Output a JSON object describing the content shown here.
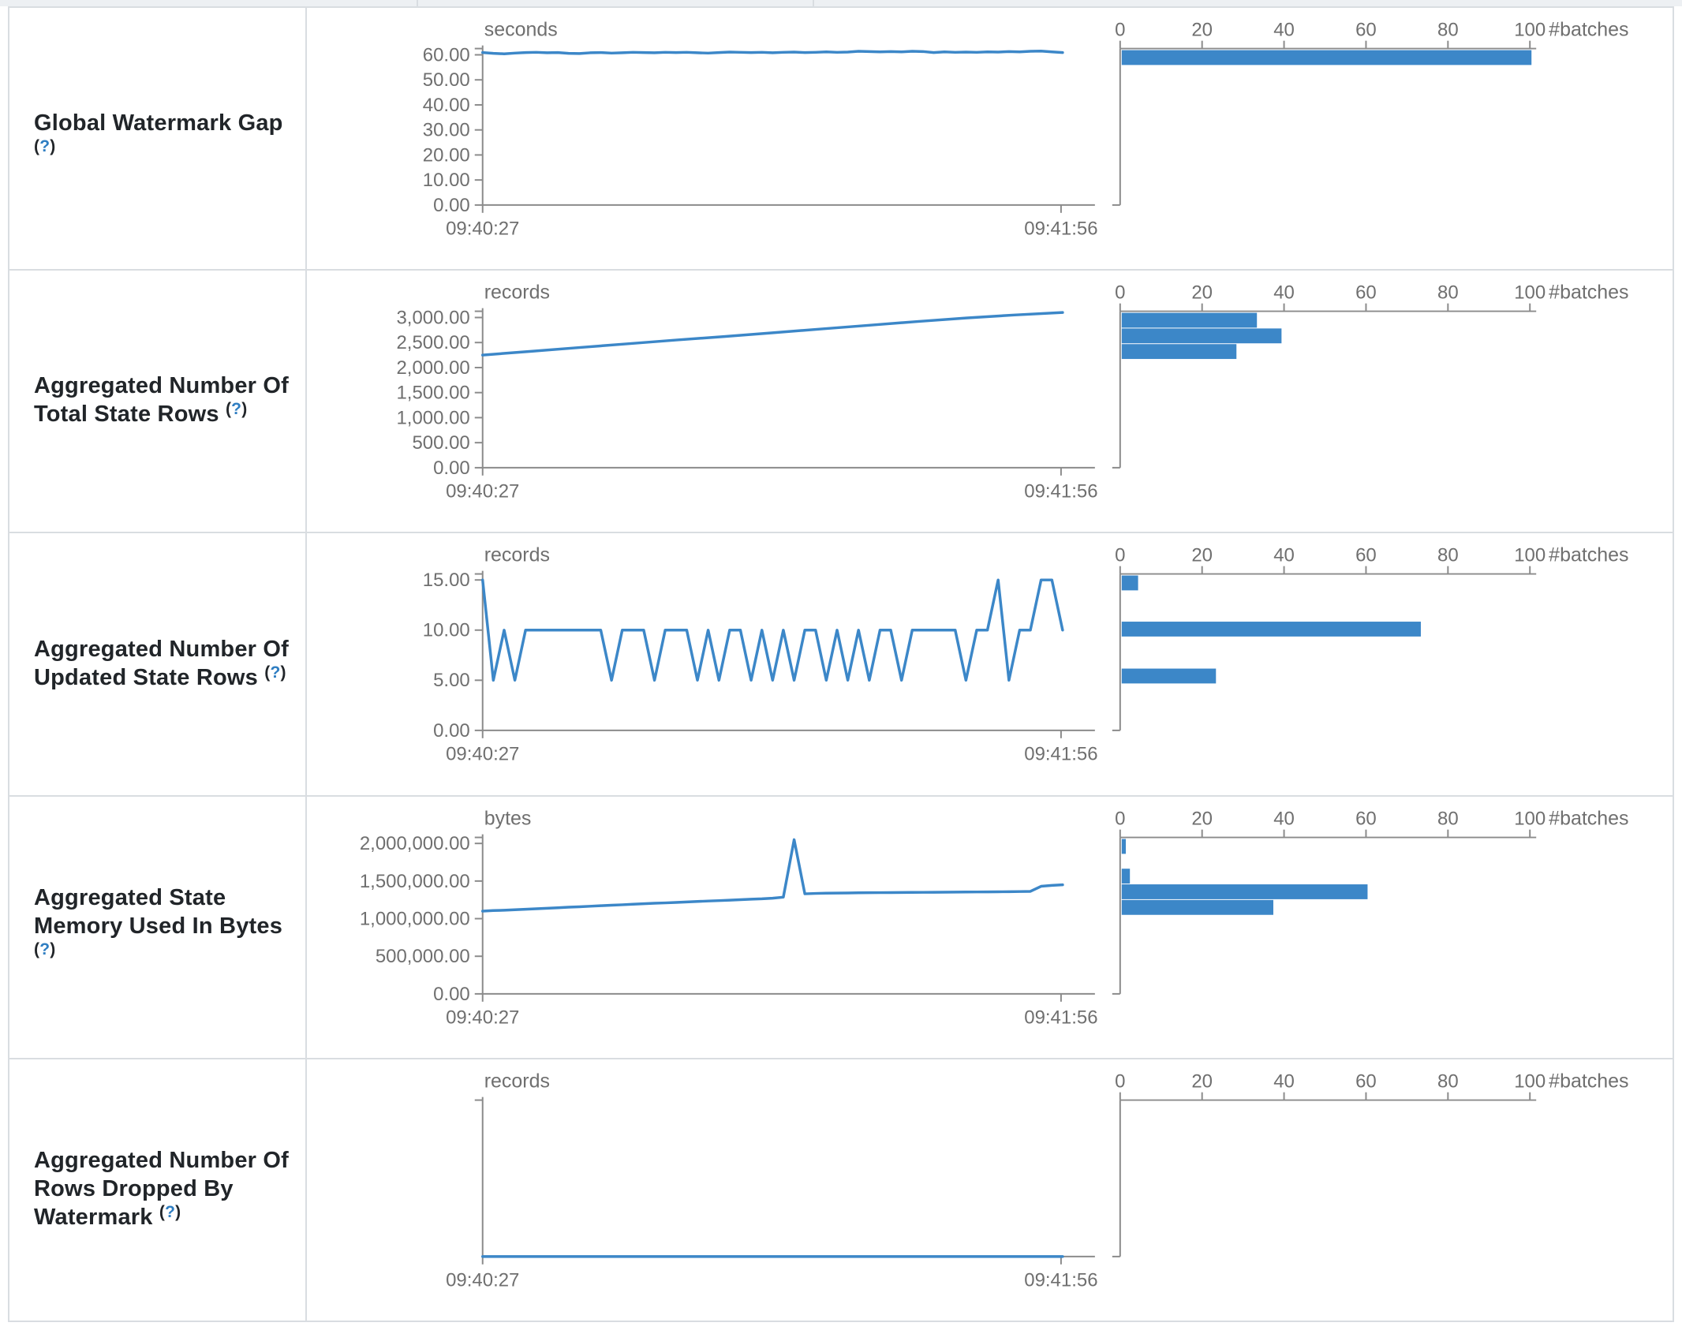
{
  "palette": {
    "line_blue": "#3c87c8",
    "bar_blue": "#3c87c8",
    "axis_gray": "#8b8b8b",
    "tick_text_gray": "#6f6f6f",
    "label_text": "#212529",
    "help_link_blue": "#2f7ec2",
    "table_border": "#d9dde1"
  },
  "x_axis": {
    "start_label": "09:40:27",
    "end_label": "09:41:56"
  },
  "histogram_axis": {
    "tick_labels": [
      "0",
      "20",
      "40",
      "60",
      "80",
      "100"
    ],
    "unit_label": "#batches"
  },
  "help_marker": {
    "open": "(",
    "mark": "?",
    "close": ")"
  },
  "rows": [
    {
      "id": "global-watermark-gap",
      "label_lines": [
        "Global Watermark Gap",
        "{q}"
      ],
      "unit": "seconds",
      "y_ticks": [
        {
          "v": 60,
          "label": "60.00"
        },
        {
          "v": 50,
          "label": "50.00"
        },
        {
          "v": 40,
          "label": "40.00"
        },
        {
          "v": 30,
          "label": "30.00"
        },
        {
          "v": 20,
          "label": "20.00"
        },
        {
          "v": 10,
          "label": "10.00"
        },
        {
          "v": 0,
          "label": "0.00"
        }
      ],
      "y_max": 62.5,
      "line_values": [
        60.9,
        60.6,
        60.4,
        60.7,
        60.9,
        61.0,
        60.8,
        60.9,
        60.6,
        60.5,
        60.8,
        60.9,
        60.7,
        60.8,
        61.0,
        60.9,
        60.8,
        61.0,
        60.9,
        61.0,
        60.8,
        60.7,
        60.9,
        61.1,
        61.0,
        60.9,
        61.0,
        60.8,
        61.0,
        61.1,
        60.9,
        61.0,
        61.2,
        61.0,
        61.1,
        61.4,
        61.3,
        61.2,
        61.3,
        61.2,
        61.4,
        61.3,
        60.9,
        61.2,
        61.0,
        61.1,
        61.0,
        61.2,
        61.1,
        61.3,
        61.2,
        61.4,
        61.5,
        61.2,
        60.9
      ],
      "histogram_bars": [
        {
          "value": 100,
          "y": 54
        }
      ]
    },
    {
      "id": "total-state-rows",
      "label_lines": [
        "Aggregated Number Of",
        "Total State Rows {q}"
      ],
      "unit": "records",
      "y_ticks": [
        {
          "v": 3000,
          "label": "3,000.00"
        },
        {
          "v": 2500,
          "label": "2,500.00"
        },
        {
          "v": 2000,
          "label": "2,000.00"
        },
        {
          "v": 1500,
          "label": "1,500.00"
        },
        {
          "v": 1000,
          "label": "1,000.00"
        },
        {
          "v": 500,
          "label": "500.00"
        },
        {
          "v": 0,
          "label": "0.00"
        }
      ],
      "y_max": 3125,
      "line_values": [
        2250,
        2325,
        2400,
        2475,
        2550,
        2620,
        2695,
        2770,
        2845,
        2920,
        2990,
        3050,
        3100
      ],
      "histogram_bars": [
        {
          "value": 33,
          "y": 54
        },
        {
          "value": 39,
          "y": 74
        },
        {
          "value": 28,
          "y": 94
        }
      ]
    },
    {
      "id": "updated-state-rows",
      "label_lines": [
        "Aggregated Number Of",
        "Updated State Rows {q}"
      ],
      "unit": "records",
      "y_ticks": [
        {
          "v": 15,
          "label": "15.00"
        },
        {
          "v": 10,
          "label": "10.00"
        },
        {
          "v": 5,
          "label": "5.00"
        },
        {
          "v": 0,
          "label": "0.00"
        }
      ],
      "y_max": 15.6,
      "line_values": [
        15,
        5,
        10,
        5,
        10,
        10,
        10,
        10,
        10,
        10,
        10,
        10,
        5,
        10,
        10,
        10,
        5,
        10,
        10,
        10,
        5,
        10,
        5,
        10,
        10,
        5,
        10,
        5,
        10,
        5,
        10,
        10,
        5,
        10,
        5,
        10,
        5,
        10,
        10,
        5,
        10,
        10,
        10,
        10,
        10,
        5,
        10,
        10,
        15,
        5,
        10,
        10,
        15,
        15,
        10
      ],
      "histogram_bars": [
        {
          "value": 4,
          "y": 54
        },
        {
          "value": 73,
          "y": 113
        },
        {
          "value": 23,
          "y": 173
        }
      ]
    },
    {
      "id": "state-memory-used-bytes",
      "label_lines": [
        "Aggregated State",
        "Memory Used In Bytes",
        "{q}"
      ],
      "unit": "bytes",
      "y_ticks": [
        {
          "v": 2000000,
          "label": "2,000,000.00"
        },
        {
          "v": 1500000,
          "label": "1,500,000.00"
        },
        {
          "v": 1000000,
          "label": "1,000,000.00"
        },
        {
          "v": 500000,
          "label": "500,000.00"
        },
        {
          "v": 0,
          "label": "0.00"
        }
      ],
      "y_max": 2080000,
      "line_values": [
        1100000,
        1108000,
        1112000,
        1118000,
        1125000,
        1132000,
        1138000,
        1145000,
        1152000,
        1158000,
        1165000,
        1172000,
        1178000,
        1185000,
        1192000,
        1198000,
        1205000,
        1210000,
        1216000,
        1222000,
        1228000,
        1234000,
        1240000,
        1246000,
        1252000,
        1258000,
        1264000,
        1272000,
        1285000,
        2050000,
        1330000,
        1335000,
        1338000,
        1340000,
        1342000,
        1344000,
        1345000,
        1346000,
        1347000,
        1348000,
        1349000,
        1350000,
        1351000,
        1352000,
        1353000,
        1354000,
        1355000,
        1356000,
        1357000,
        1358000,
        1360000,
        1362000,
        1430000,
        1442000,
        1450000
      ],
      "histogram_bars": [
        {
          "value": 1,
          "y": 54
        },
        {
          "value": 2,
          "y": 92
        },
        {
          "value": 60,
          "y": 112
        },
        {
          "value": 37,
          "y": 132
        }
      ]
    },
    {
      "id": "rows-dropped-by-watermark",
      "label_lines": [
        "Aggregated Number Of",
        "Rows Dropped By",
        "Watermark {q}"
      ],
      "unit": "records",
      "y_ticks": [],
      "y_max": 1,
      "line_values": [
        0,
        0
      ],
      "histogram_bars": []
    }
  ]
}
